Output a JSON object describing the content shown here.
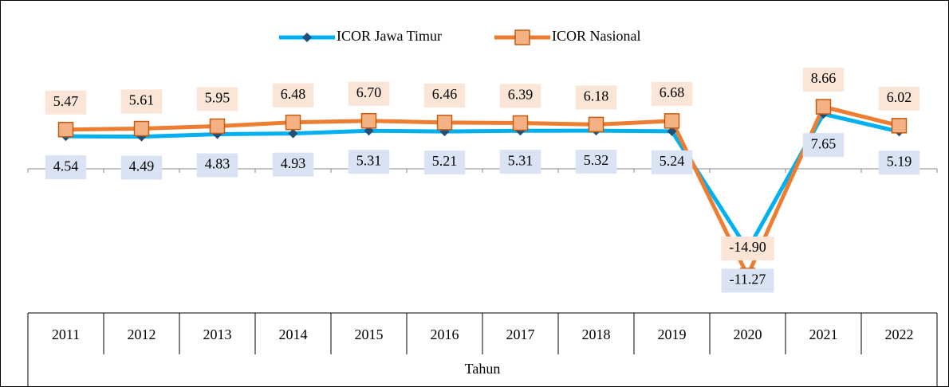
{
  "chart_data": {
    "type": "line",
    "x_label": "Tahun",
    "categories": [
      "2011",
      "2012",
      "2013",
      "2014",
      "2015",
      "2016",
      "2017",
      "2018",
      "2019",
      "2020",
      "2021",
      "2022"
    ],
    "series": [
      {
        "name": "ICOR Jawa Timur",
        "color": "#00b0f0",
        "marker": "diamond",
        "label_fill": "#dae3f3",
        "values": [
          4.54,
          4.49,
          4.83,
          4.93,
          5.31,
          5.21,
          5.31,
          5.32,
          5.24,
          -11.27,
          7.65,
          5.19
        ],
        "value_labels": [
          "4.54",
          "4.49",
          "4.83",
          "4.93",
          "5.31",
          "5.21",
          "5.31",
          "5.32",
          "5.24",
          "-11.27",
          "7.65",
          "5.19"
        ]
      },
      {
        "name": "ICOR Nasional",
        "color": "#ed7d31",
        "marker": "square",
        "label_fill": "#fbe5d6",
        "values": [
          5.47,
          5.61,
          5.95,
          6.48,
          6.7,
          6.46,
          6.39,
          6.18,
          6.68,
          -14.9,
          8.66,
          6.02
        ],
        "value_labels": [
          "5.47",
          "5.61",
          "5.95",
          "6.48",
          "6.70",
          "6.46",
          "6.39",
          "6.18",
          "6.68",
          "-14.90",
          "8.66",
          "6.02"
        ]
      }
    ],
    "ylim": [
      -15,
      10
    ],
    "legend": "top"
  }
}
